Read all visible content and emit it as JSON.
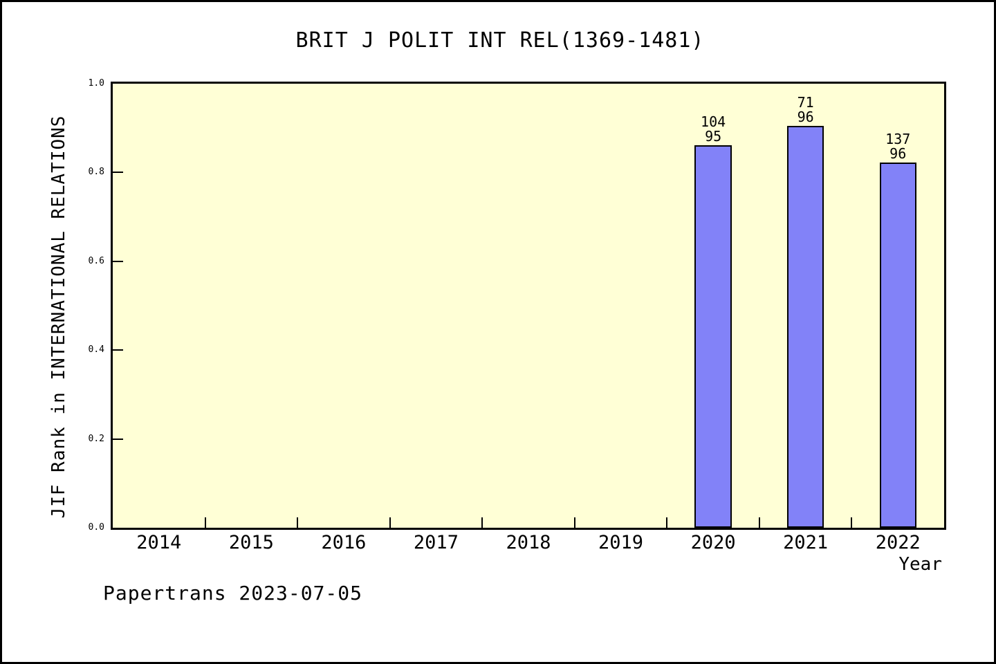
{
  "chart_data": {
    "type": "bar",
    "title": "BRIT J POLIT INT REL(1369-1481)",
    "xlabel": "Year",
    "ylabel": "JIF Rank in INTERNATIONAL RELATIONS",
    "categories": [
      "2014",
      "2015",
      "2016",
      "2017",
      "2018",
      "2019",
      "2020",
      "2021",
      "2022"
    ],
    "series": [
      {
        "name": "JIF Rank in INTERNATIONAL RELATIONS",
        "values": [
          null,
          null,
          null,
          null,
          null,
          null,
          0.862,
          0.905,
          0.823
        ]
      }
    ],
    "bar_labels": [
      null,
      null,
      null,
      null,
      null,
      null,
      [
        "104",
        "95"
      ],
      [
        "71",
        "96"
      ],
      [
        "137",
        "96"
      ]
    ],
    "ylim": [
      0.0,
      1.0
    ],
    "y_ticks": [
      "0.0",
      "0.2",
      "0.4",
      "0.6",
      "0.8",
      "1.0"
    ],
    "grid": false,
    "legend_position": "none",
    "colors": {
      "bar": "#8282f8",
      "bar_border": "#000000",
      "plot_background": "#ffffd6",
      "figure_background": "#ffffff"
    }
  },
  "footer": {
    "text": "Papertrans 2023-07-05"
  }
}
